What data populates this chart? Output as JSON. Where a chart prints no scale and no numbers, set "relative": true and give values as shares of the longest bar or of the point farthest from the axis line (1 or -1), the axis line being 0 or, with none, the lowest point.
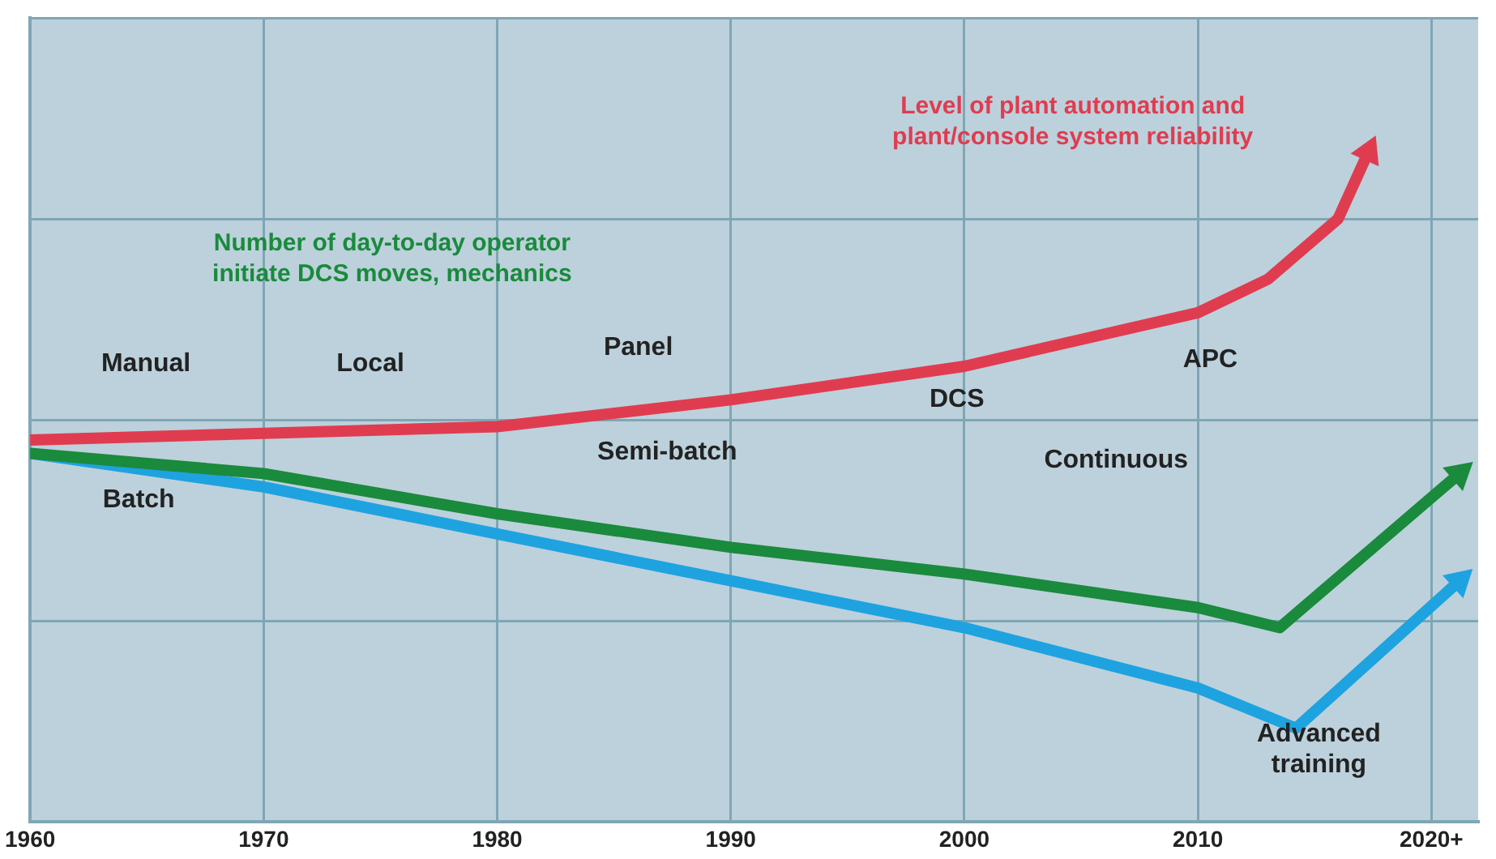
{
  "chart_data": {
    "type": "line",
    "relative": true,
    "xlim": [
      1960,
      2022
    ],
    "xticks": [
      1960,
      1970,
      1980,
      1990,
      2000,
      2010,
      {
        "value": 2020,
        "label": "2020+"
      }
    ],
    "series": [
      {
        "name": "Level of plant automation and plant/console system reliability",
        "color": "#e03c50",
        "x": [
          1960,
          1970,
          1980,
          1990,
          2000,
          2010,
          2013,
          2016,
          2017.3
        ],
        "values": [
          0.57,
          0.58,
          0.59,
          0.63,
          0.68,
          0.76,
          0.81,
          0.9,
          1.0
        ]
      },
      {
        "name": "Number of day-to-day operator initiate DCS moves, mechanics",
        "color": "#1a8a3c",
        "x": [
          1960,
          1970,
          1980,
          1990,
          2000,
          2010,
          2013.5,
          2021.2
        ],
        "values": [
          0.55,
          0.52,
          0.46,
          0.41,
          0.37,
          0.32,
          0.29,
          0.52
        ]
      },
      {
        "color": "#1ea3e0",
        "x": [
          1960,
          1970,
          1980,
          1990,
          2000,
          2010,
          2014.2,
          2021.2
        ],
        "values": [
          0.55,
          0.5,
          0.43,
          0.36,
          0.29,
          0.2,
          0.14,
          0.36
        ]
      }
    ],
    "annotations": [
      "Manual",
      "Local",
      "Panel",
      "DCS",
      "APC",
      "Batch",
      "Semi-batch",
      "Continuous",
      "Advanced training"
    ],
    "grid": true,
    "legend": false,
    "marker": "none",
    "line_style": "solid"
  }
}
